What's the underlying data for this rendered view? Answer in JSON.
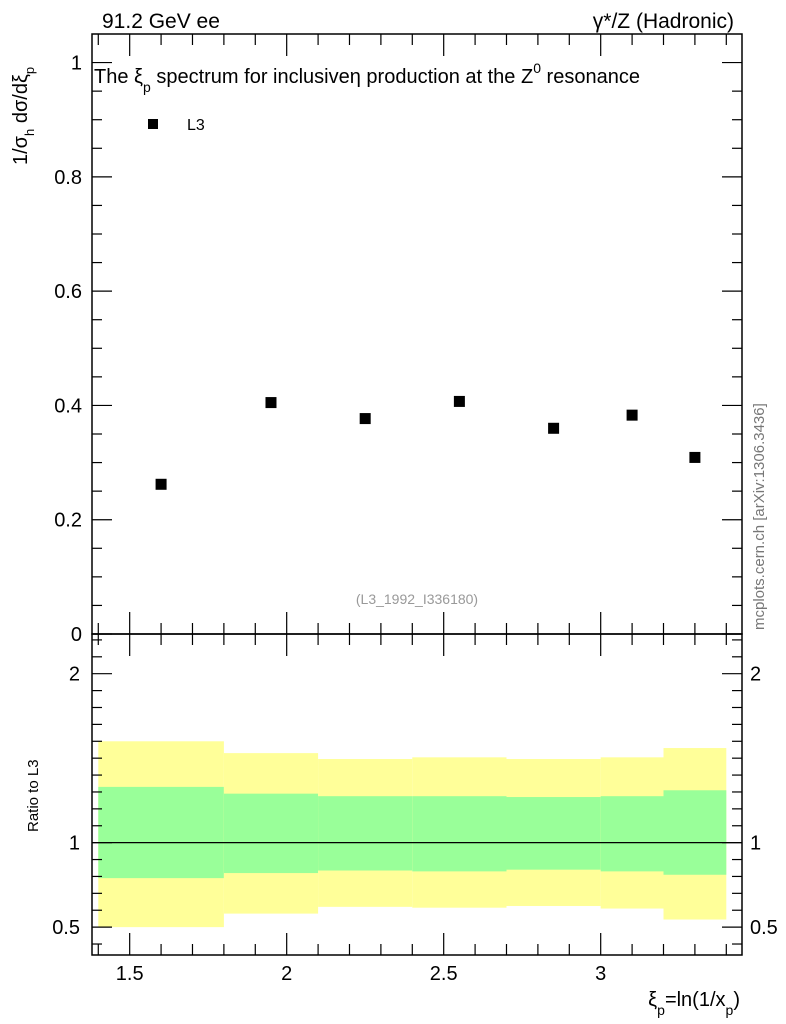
{
  "header": {
    "left": "91.2 GeV ee",
    "right": "γ*/Z (Hadronic)"
  },
  "watermark": "mcplots.cern.ch [arXiv:1306.3436]",
  "analysis_tag": "(L3_1992_I336180)",
  "colors": {
    "marker": "#000000",
    "band_inner": "#99ff99",
    "band_outer": "#ffff99",
    "tag_text": "#999999",
    "watermark_text": "#777777"
  },
  "chart_data": [
    {
      "type": "scatter",
      "panel": "main",
      "title_parts": {
        "t1": "The ξ",
        "t1_sub": "p",
        "t2": " spectrum for inclusiveη production at the Z",
        "t2_sup": "0",
        "t3": " resonance"
      },
      "ylabel_parts": {
        "a": "1/σ",
        "a_sub": "h",
        "b": " dσ/dξ",
        "b_sub": "p"
      },
      "xlim": [
        1.38,
        3.45
      ],
      "ylim": [
        0,
        1.05
      ],
      "yticks": [
        {
          "v": 0,
          "label": "0"
        },
        {
          "v": 0.2,
          "label": "0.2"
        },
        {
          "v": 0.4,
          "label": "0.4"
        },
        {
          "v": 0.6,
          "label": "0.6"
        },
        {
          "v": 0.8,
          "label": "0.8"
        },
        {
          "v": 1.0,
          "label": "1"
        }
      ],
      "legend": {
        "label": "L3",
        "placement": "top-left"
      },
      "series": [
        {
          "name": "L3",
          "points": [
            {
              "x": 1.6,
              "y": 0.262
            },
            {
              "x": 1.95,
              "y": 0.405
            },
            {
              "x": 2.25,
              "y": 0.377
            },
            {
              "x": 2.55,
              "y": 0.407
            },
            {
              "x": 2.85,
              "y": 0.36
            },
            {
              "x": 3.1,
              "y": 0.383
            },
            {
              "x": 3.3,
              "y": 0.309
            }
          ]
        }
      ]
    },
    {
      "type": "area",
      "panel": "ratio",
      "ylabel": "Ratio to L3",
      "xlabel_parts": {
        "a": "ξ",
        "a_sub": "p",
        "b": "=ln(1/x",
        "b_sub": "p",
        "c": ")"
      },
      "xlim": [
        1.38,
        3.45
      ],
      "ylim": [
        0.335,
        2.235
      ],
      "xticks": [
        {
          "v": 1.5,
          "label": "1.5"
        },
        {
          "v": 2.0,
          "label": "2"
        },
        {
          "v": 2.5,
          "label": "2.5"
        },
        {
          "v": 3.0,
          "label": "3"
        }
      ],
      "yticks": [
        {
          "v": 0.5,
          "label": "0.5"
        },
        {
          "v": 1.0,
          "label": "1"
        },
        {
          "v": 2.0,
          "label": "2"
        }
      ],
      "bins": [
        {
          "x0": 1.4,
          "x1": 1.8,
          "inner": [
            0.79,
            1.33
          ],
          "outer": [
            0.5,
            1.6
          ]
        },
        {
          "x0": 1.8,
          "x1": 2.1,
          "inner": [
            0.82,
            1.29
          ],
          "outer": [
            0.58,
            1.53
          ]
        },
        {
          "x0": 2.1,
          "x1": 2.4,
          "inner": [
            0.835,
            1.275
          ],
          "outer": [
            0.62,
            1.495
          ]
        },
        {
          "x0": 2.4,
          "x1": 2.7,
          "inner": [
            0.83,
            1.275
          ],
          "outer": [
            0.615,
            1.505
          ]
        },
        {
          "x0": 2.7,
          "x1": 3.0,
          "inner": [
            0.84,
            1.27
          ],
          "outer": [
            0.625,
            1.495
          ]
        },
        {
          "x0": 3.0,
          "x1": 3.2,
          "inner": [
            0.83,
            1.275
          ],
          "outer": [
            0.61,
            1.505
          ]
        },
        {
          "x0": 3.2,
          "x1": 3.4,
          "inner": [
            0.81,
            1.31
          ],
          "outer": [
            0.545,
            1.56
          ]
        }
      ],
      "reference_line": 1.0
    }
  ]
}
